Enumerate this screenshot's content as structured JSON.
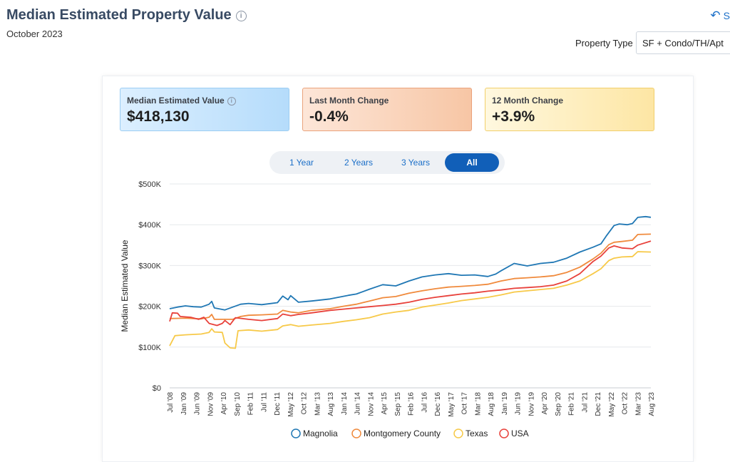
{
  "header": {
    "title": "Median Estimated Property Value",
    "info_icon": "info-icon",
    "subtitle": "October 2023",
    "share_icon": "share-arrow-icon",
    "share_label": "S",
    "property_type_label": "Property Type",
    "property_type_value": "SF + Condo/TH/Apt"
  },
  "stats": [
    {
      "label": "Median Estimated Value",
      "value": "$418,130"
    },
    {
      "label": "Last Month Change",
      "value": "-0.4%"
    },
    {
      "label": "12 Month Change",
      "value": "+3.9%"
    }
  ],
  "tabs": [
    {
      "label": "1 Year",
      "active": false
    },
    {
      "label": "2 Years",
      "active": false
    },
    {
      "label": "3 Years",
      "active": false
    },
    {
      "label": "All",
      "active": true
    }
  ],
  "chart_data": {
    "type": "line",
    "ylabel": "Median Estimated Value",
    "ylim": [
      0,
      500000
    ],
    "yticks": [
      0,
      100000,
      200000,
      300000,
      400000,
      500000
    ],
    "ytick_labels": [
      "$0",
      "$100K",
      "$200K",
      "$300K",
      "$400K",
      "$500K"
    ],
    "xlim": [
      "2008-07",
      "2023-10"
    ],
    "xtick_labels": [
      "Jul '08",
      "Jan '09",
      "Jun '09",
      "Nov '09",
      "Apr '10",
      "Sep '10",
      "Feb '11",
      "Jul '11",
      "Dec '11",
      "May '12",
      "Oct '12",
      "Mar '13",
      "Aug '13",
      "Jan '14",
      "Jun '14",
      "Nov '14",
      "Apr '15",
      "Sep '15",
      "Feb '16",
      "Jul '16",
      "Dec '16",
      "May '17",
      "Oct '17",
      "Mar '18",
      "Aug '18",
      "Jan '19",
      "Jun '19",
      "Nov '19",
      "Apr '20",
      "Sep '20",
      "Feb '21",
      "Jul '21",
      "Dec '21",
      "May '22",
      "Oct '22",
      "Mar '23",
      "Aug '23"
    ],
    "legend_position": "bottom",
    "series": [
      {
        "name": "Magnolia",
        "color": "#1f77b4",
        "points": [
          [
            "2008-07",
            194000
          ],
          [
            "2008-10",
            198000
          ],
          [
            "2009-01",
            201000
          ],
          [
            "2009-04",
            199000
          ],
          [
            "2009-07",
            198000
          ],
          [
            "2009-10",
            205000
          ],
          [
            "2009-11",
            212000
          ],
          [
            "2009-12",
            196000
          ],
          [
            "2010-04",
            191000
          ],
          [
            "2010-07",
            198000
          ],
          [
            "2010-10",
            205000
          ],
          [
            "2011-01",
            207000
          ],
          [
            "2011-06",
            204000
          ],
          [
            "2011-12",
            209000
          ],
          [
            "2012-02",
            225000
          ],
          [
            "2012-04",
            216000
          ],
          [
            "2012-05",
            226000
          ],
          [
            "2012-08",
            210000
          ],
          [
            "2013-01",
            213000
          ],
          [
            "2013-08",
            218000
          ],
          [
            "2014-03",
            227000
          ],
          [
            "2014-06",
            230000
          ],
          [
            "2014-11",
            242000
          ],
          [
            "2015-04",
            253000
          ],
          [
            "2015-09",
            250000
          ],
          [
            "2016-02",
            262000
          ],
          [
            "2016-07",
            272000
          ],
          [
            "2016-12",
            277000
          ],
          [
            "2017-05",
            280000
          ],
          [
            "2017-10",
            276000
          ],
          [
            "2018-03",
            277000
          ],
          [
            "2018-08",
            273000
          ],
          [
            "2018-11",
            279000
          ],
          [
            "2019-01",
            287000
          ],
          [
            "2019-06",
            305000
          ],
          [
            "2019-11",
            299000
          ],
          [
            "2020-04",
            305000
          ],
          [
            "2020-09",
            308000
          ],
          [
            "2020-12",
            314000
          ],
          [
            "2021-02",
            318000
          ],
          [
            "2021-07",
            333000
          ],
          [
            "2021-12",
            345000
          ],
          [
            "2022-03",
            353000
          ],
          [
            "2022-05",
            372000
          ],
          [
            "2022-08",
            398000
          ],
          [
            "2022-10",
            402000
          ],
          [
            "2023-01",
            400000
          ],
          [
            "2023-03",
            403000
          ],
          [
            "2023-05",
            418000
          ],
          [
            "2023-08",
            420000
          ],
          [
            "2023-10",
            418130
          ]
        ]
      },
      {
        "name": "Montgomery County",
        "color": "#f08a3c",
        "points": [
          [
            "2008-07",
            170000
          ],
          [
            "2009-01",
            171000
          ],
          [
            "2009-07",
            169000
          ],
          [
            "2009-10",
            173000
          ],
          [
            "2009-11",
            180000
          ],
          [
            "2009-12",
            168000
          ],
          [
            "2010-07",
            168000
          ],
          [
            "2010-10",
            175000
          ],
          [
            "2011-01",
            178000
          ],
          [
            "2011-06",
            179000
          ],
          [
            "2011-12",
            181000
          ],
          [
            "2012-02",
            190000
          ],
          [
            "2012-05",
            186000
          ],
          [
            "2012-08",
            184000
          ],
          [
            "2013-01",
            190000
          ],
          [
            "2013-08",
            194000
          ],
          [
            "2014-01",
            200000
          ],
          [
            "2014-06",
            205000
          ],
          [
            "2014-11",
            213000
          ],
          [
            "2015-04",
            221000
          ],
          [
            "2015-09",
            224000
          ],
          [
            "2016-02",
            232000
          ],
          [
            "2016-07",
            238000
          ],
          [
            "2016-12",
            243000
          ],
          [
            "2017-05",
            247000
          ],
          [
            "2017-10",
            249000
          ],
          [
            "2018-03",
            251000
          ],
          [
            "2018-08",
            254000
          ],
          [
            "2019-01",
            262000
          ],
          [
            "2019-06",
            268000
          ],
          [
            "2019-11",
            270000
          ],
          [
            "2020-04",
            272000
          ],
          [
            "2020-09",
            275000
          ],
          [
            "2021-02",
            283000
          ],
          [
            "2021-07",
            296000
          ],
          [
            "2021-12",
            316000
          ],
          [
            "2022-03",
            330000
          ],
          [
            "2022-06",
            351000
          ],
          [
            "2022-08",
            357000
          ],
          [
            "2022-11",
            359000
          ],
          [
            "2023-03",
            362000
          ],
          [
            "2023-05",
            376000
          ],
          [
            "2023-10",
            377000
          ]
        ]
      },
      {
        "name": "Texas",
        "color": "#f7c948",
        "points": [
          [
            "2008-07",
            103000
          ],
          [
            "2008-09",
            128000
          ],
          [
            "2009-01",
            130000
          ],
          [
            "2009-07",
            132000
          ],
          [
            "2009-10",
            136000
          ],
          [
            "2009-11",
            145000
          ],
          [
            "2009-12",
            137000
          ],
          [
            "2010-03",
            136000
          ],
          [
            "2010-04",
            110000
          ],
          [
            "2010-06",
            98000
          ],
          [
            "2010-08",
            97000
          ],
          [
            "2010-09",
            140000
          ],
          [
            "2011-01",
            142000
          ],
          [
            "2011-06",
            139000
          ],
          [
            "2011-12",
            143000
          ],
          [
            "2012-02",
            152000
          ],
          [
            "2012-05",
            155000
          ],
          [
            "2012-08",
            151000
          ],
          [
            "2013-01",
            154000
          ],
          [
            "2013-08",
            158000
          ],
          [
            "2014-01",
            163000
          ],
          [
            "2014-06",
            167000
          ],
          [
            "2014-11",
            172000
          ],
          [
            "2015-04",
            181000
          ],
          [
            "2015-09",
            186000
          ],
          [
            "2016-02",
            190000
          ],
          [
            "2016-07",
            198000
          ],
          [
            "2016-12",
            203000
          ],
          [
            "2017-05",
            208000
          ],
          [
            "2017-10",
            214000
          ],
          [
            "2018-03",
            218000
          ],
          [
            "2018-08",
            222000
          ],
          [
            "2019-01",
            228000
          ],
          [
            "2019-06",
            235000
          ],
          [
            "2019-11",
            238000
          ],
          [
            "2020-04",
            241000
          ],
          [
            "2020-09",
            244000
          ],
          [
            "2021-02",
            252000
          ],
          [
            "2021-07",
            262000
          ],
          [
            "2021-12",
            280000
          ],
          [
            "2022-03",
            292000
          ],
          [
            "2022-06",
            312000
          ],
          [
            "2022-08",
            318000
          ],
          [
            "2022-11",
            321000
          ],
          [
            "2023-03",
            322000
          ],
          [
            "2023-05",
            334000
          ],
          [
            "2023-10",
            333000
          ]
        ]
      },
      {
        "name": "USA",
        "color": "#e8413b",
        "points": [
          [
            "2008-07",
            163000
          ],
          [
            "2008-08",
            184000
          ],
          [
            "2008-10",
            183000
          ],
          [
            "2008-11",
            175000
          ],
          [
            "2009-03",
            173000
          ],
          [
            "2009-06",
            168000
          ],
          [
            "2009-08",
            173000
          ],
          [
            "2009-10",
            158000
          ],
          [
            "2010-01",
            153000
          ],
          [
            "2010-03",
            158000
          ],
          [
            "2010-04",
            165000
          ],
          [
            "2010-06",
            155000
          ],
          [
            "2010-08",
            172000
          ],
          [
            "2011-01",
            168000
          ],
          [
            "2011-06",
            165000
          ],
          [
            "2011-12",
            170000
          ],
          [
            "2012-02",
            181000
          ],
          [
            "2012-05",
            177000
          ],
          [
            "2012-08",
            180000
          ],
          [
            "2013-01",
            184000
          ],
          [
            "2013-08",
            190000
          ],
          [
            "2014-01",
            193000
          ],
          [
            "2014-06",
            196000
          ],
          [
            "2014-11",
            199000
          ],
          [
            "2015-04",
            202000
          ],
          [
            "2015-09",
            205000
          ],
          [
            "2016-02",
            210000
          ],
          [
            "2016-07",
            217000
          ],
          [
            "2016-12",
            222000
          ],
          [
            "2017-05",
            226000
          ],
          [
            "2017-10",
            230000
          ],
          [
            "2018-03",
            233000
          ],
          [
            "2018-08",
            237000
          ],
          [
            "2019-01",
            240000
          ],
          [
            "2019-06",
            244000
          ],
          [
            "2019-11",
            246000
          ],
          [
            "2020-04",
            248000
          ],
          [
            "2020-09",
            252000
          ],
          [
            "2021-02",
            262000
          ],
          [
            "2021-07",
            280000
          ],
          [
            "2021-12",
            310000
          ],
          [
            "2022-03",
            323000
          ],
          [
            "2022-06",
            343000
          ],
          [
            "2022-08",
            348000
          ],
          [
            "2022-11",
            343000
          ],
          [
            "2023-03",
            341000
          ],
          [
            "2023-05",
            350000
          ],
          [
            "2023-10",
            360000
          ]
        ]
      }
    ]
  }
}
